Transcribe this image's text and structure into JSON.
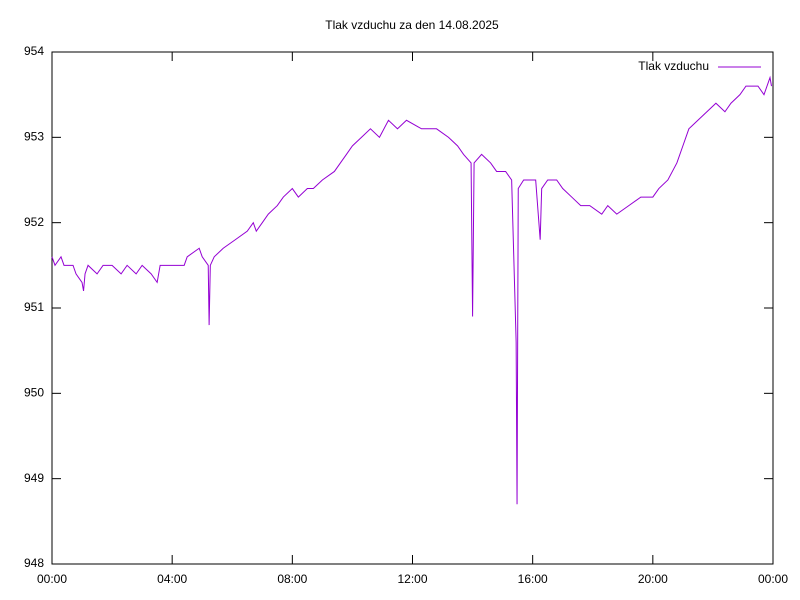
{
  "chart_data": {
    "type": "line",
    "title": "Tlak vzduchu za den 14.08.2025",
    "x": [
      0,
      0.1,
      0.3,
      0.4,
      0.7,
      0.8,
      1.0,
      1.05,
      1.1,
      1.2,
      1.5,
      1.7,
      2.0,
      2.3,
      2.5,
      2.8,
      3.0,
      3.3,
      3.5,
      3.6,
      4.2,
      4.4,
      4.5,
      4.9,
      5.0,
      5.2,
      5.23,
      5.27,
      5.4,
      5.7,
      6.1,
      6.5,
      6.7,
      6.8,
      7.0,
      7.2,
      7.5,
      7.7,
      8.0,
      8.2,
      8.5,
      8.7,
      9.0,
      9.4,
      9.6,
      9.8,
      10.0,
      10.3,
      10.6,
      10.9,
      11.2,
      11.5,
      11.8,
      12.3,
      12.8,
      13.2,
      13.5,
      13.7,
      13.95,
      14.0,
      14.05,
      14.3,
      14.6,
      14.8,
      15.1,
      15.3,
      15.45,
      15.48,
      15.52,
      15.7,
      15.9,
      16.1,
      16.25,
      16.3,
      16.5,
      16.8,
      17.0,
      17.3,
      17.6,
      17.9,
      18.3,
      18.5,
      18.8,
      19.2,
      19.6,
      20.0,
      20.2,
      20.5,
      20.8,
      21.0,
      21.2,
      21.5,
      21.8,
      22.1,
      22.4,
      22.6,
      22.9,
      23.1,
      23.5,
      23.7,
      23.9,
      23.95
    ],
    "series": [
      {
        "name": "Tlak vzduchu",
        "color": "#9400d3",
        "values": [
          951.6,
          951.5,
          951.6,
          951.5,
          951.5,
          951.4,
          951.3,
          951.2,
          951.4,
          951.5,
          951.4,
          951.5,
          951.5,
          951.4,
          951.5,
          951.4,
          951.5,
          951.4,
          951.3,
          951.5,
          951.5,
          951.5,
          951.6,
          951.7,
          951.6,
          951.5,
          950.8,
          951.5,
          951.6,
          951.7,
          951.8,
          951.9,
          952.0,
          951.9,
          952.0,
          952.1,
          952.2,
          952.3,
          952.4,
          952.3,
          952.4,
          952.4,
          952.5,
          952.6,
          952.7,
          952.8,
          952.9,
          953.0,
          953.1,
          953.0,
          953.2,
          953.1,
          953.2,
          953.1,
          953.1,
          953.0,
          952.9,
          952.8,
          952.7,
          950.9,
          952.7,
          952.8,
          952.7,
          952.6,
          952.6,
          952.5,
          950.6,
          948.7,
          952.4,
          952.5,
          952.5,
          952.5,
          951.8,
          952.4,
          952.5,
          952.5,
          952.4,
          952.3,
          952.2,
          952.2,
          952.1,
          952.2,
          952.1,
          952.2,
          952.3,
          952.3,
          952.4,
          952.5,
          952.7,
          952.9,
          953.1,
          953.2,
          953.3,
          953.4,
          953.3,
          953.4,
          953.5,
          953.6,
          953.6,
          953.5,
          953.7,
          953.6
        ]
      }
    ],
    "xlim": [
      0,
      24
    ],
    "xticks": [
      {
        "value": 0,
        "label": "00:00"
      },
      {
        "value": 4,
        "label": "04:00"
      },
      {
        "value": 8,
        "label": "08:00"
      },
      {
        "value": 12,
        "label": "12:00"
      },
      {
        "value": 16,
        "label": "16:00"
      },
      {
        "value": 20,
        "label": "20:00"
      },
      {
        "value": 24,
        "label": "00:00"
      }
    ],
    "ylim": [
      948,
      954
    ],
    "yticks": [
      948,
      949,
      950,
      951,
      952,
      953,
      954
    ],
    "legend": "top-right"
  }
}
